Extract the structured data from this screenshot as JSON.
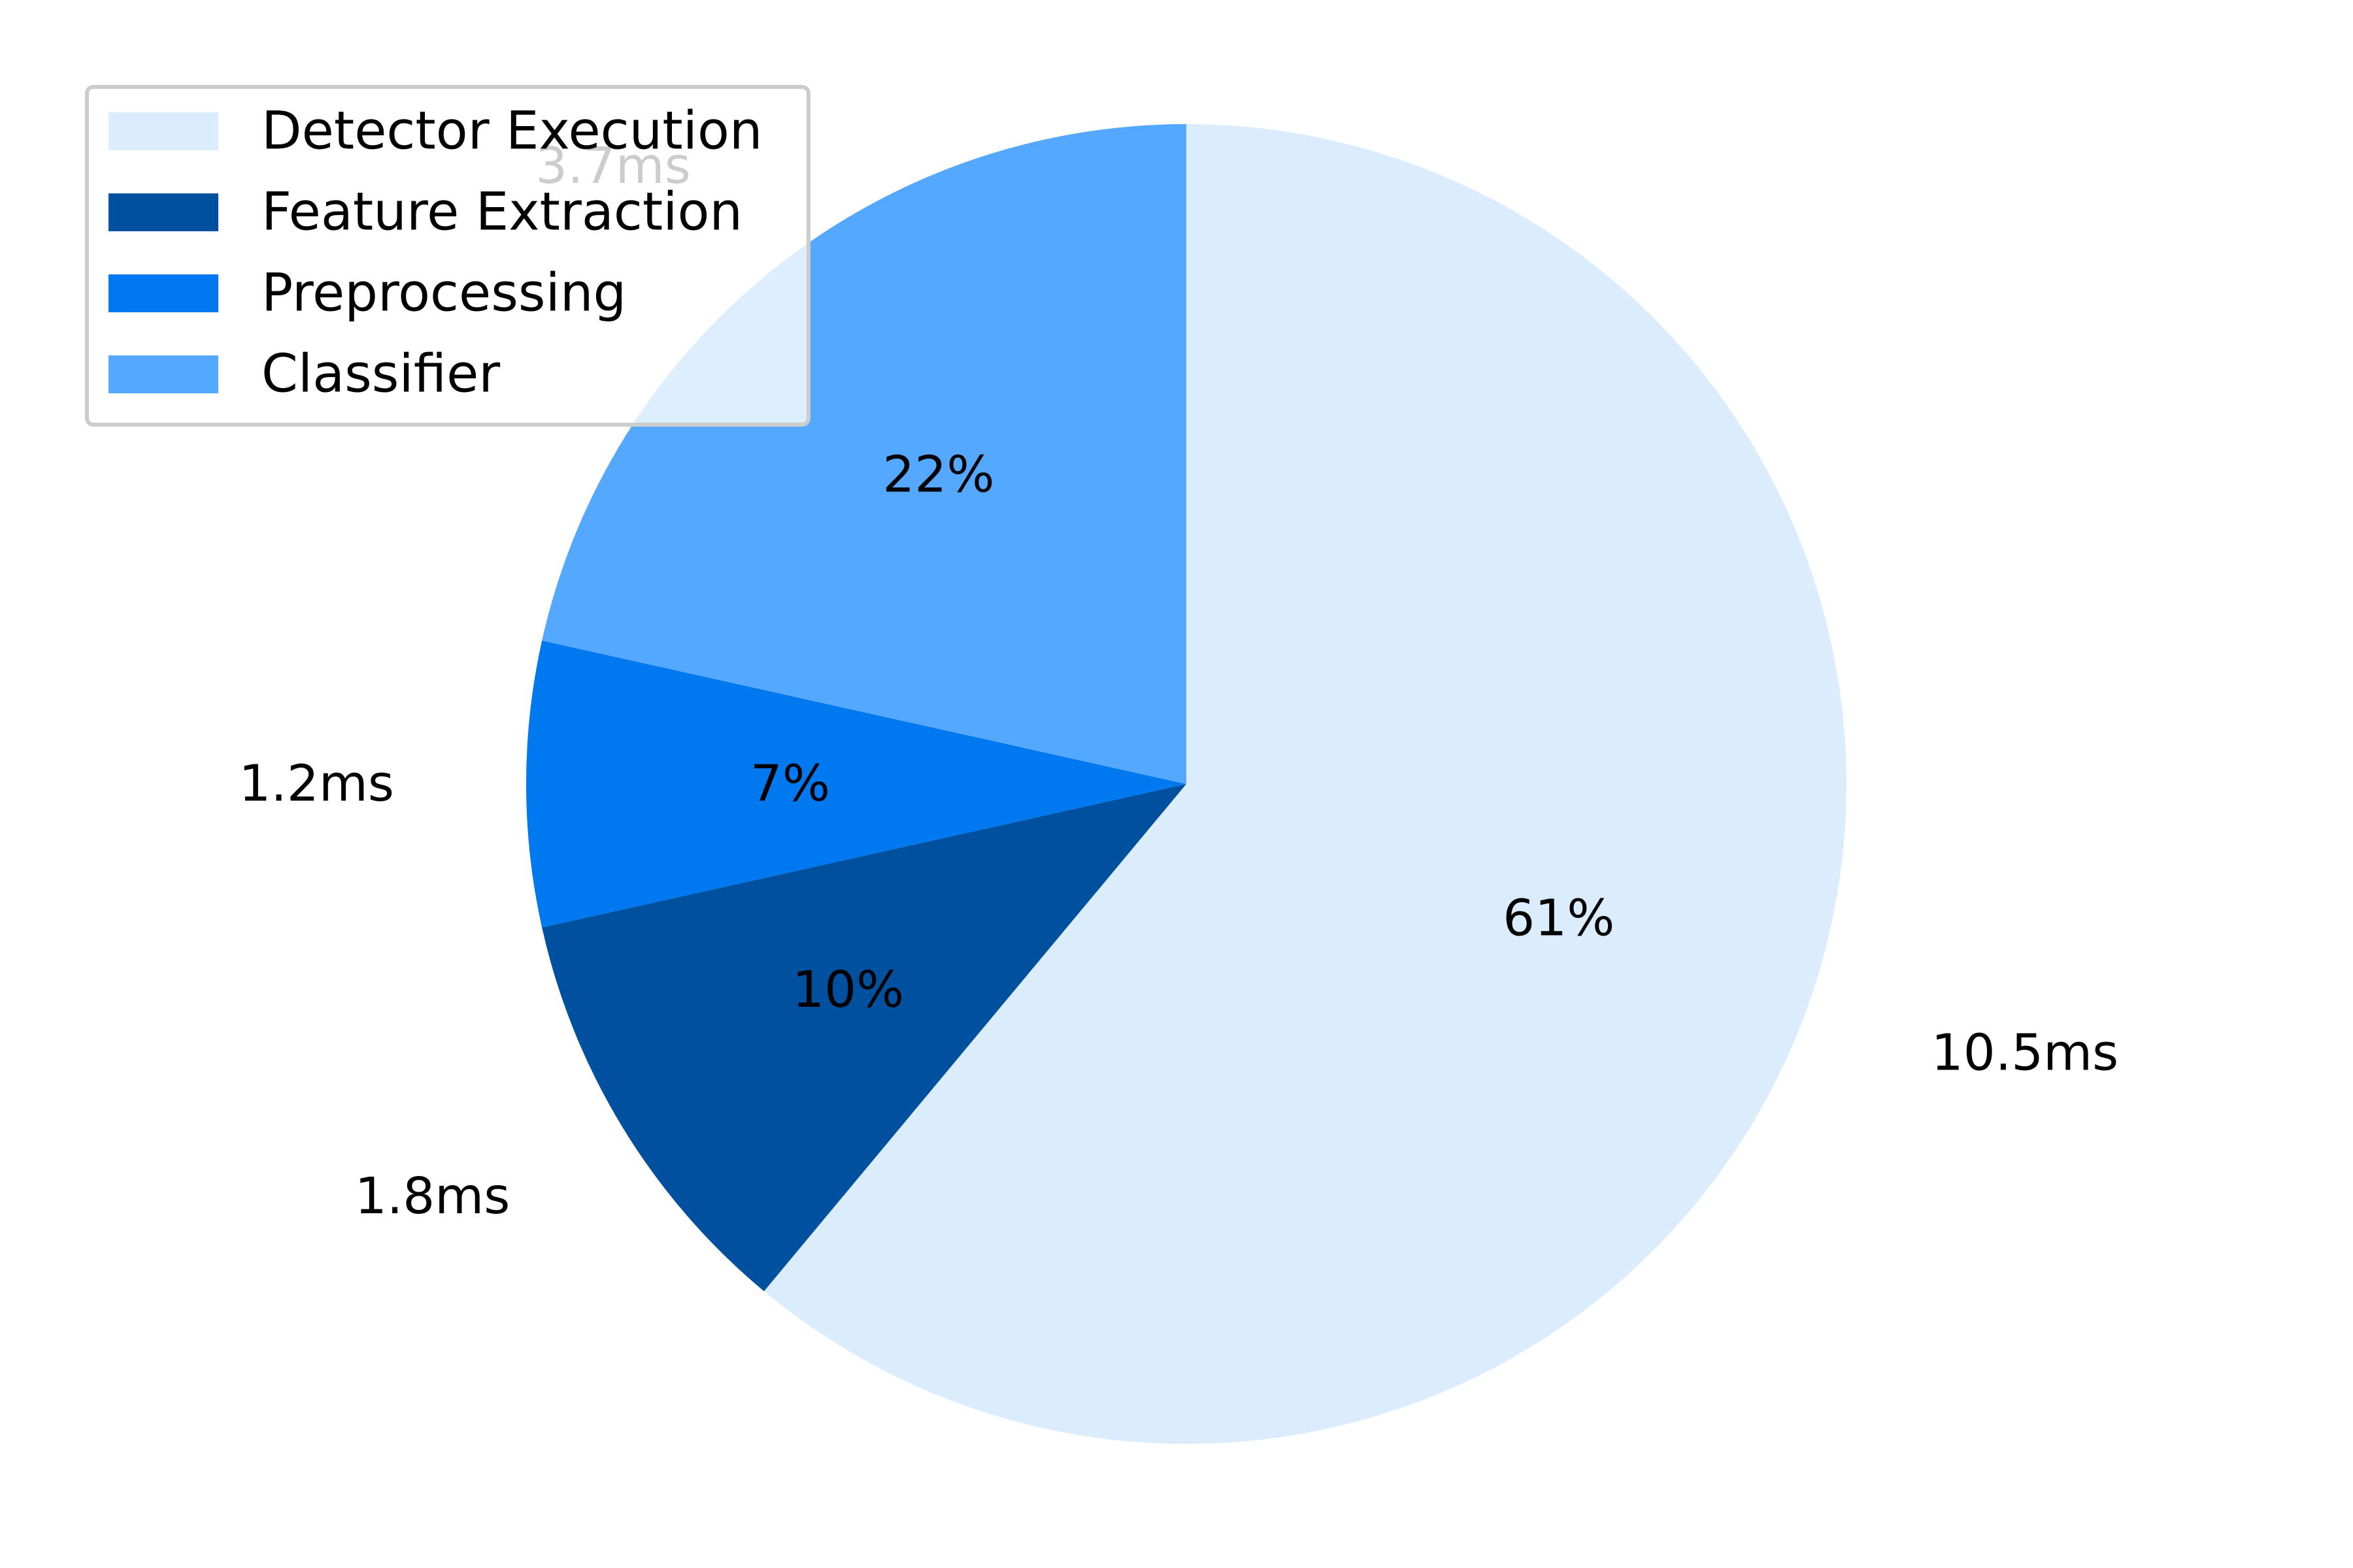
{
  "chart_data": {
    "type": "pie",
    "slices": [
      {
        "label": "Detector Execution",
        "value": 10.5,
        "percent_label": "61%",
        "value_label": "10.5ms",
        "color": "#dbecfd"
      },
      {
        "label": "Feature Extraction",
        "value": 1.8,
        "percent_label": "10%",
        "value_label": "1.8ms",
        "color": "#0050a0"
      },
      {
        "label": "Preprocessing",
        "value": 1.2,
        "percent_label": "7%",
        "value_label": "1.2ms",
        "color": "#0078f0"
      },
      {
        "label": "Classifier",
        "value": 3.7,
        "percent_label": "22%",
        "value_label": "3.7ms",
        "color": "#54a8ff"
      }
    ],
    "legend": {
      "placement": "top-left",
      "entries": [
        "Detector Execution",
        "Feature Extraction",
        "Preprocessing",
        "Classifier"
      ]
    },
    "start_angle_deg": 90,
    "direction": "clockwise"
  }
}
